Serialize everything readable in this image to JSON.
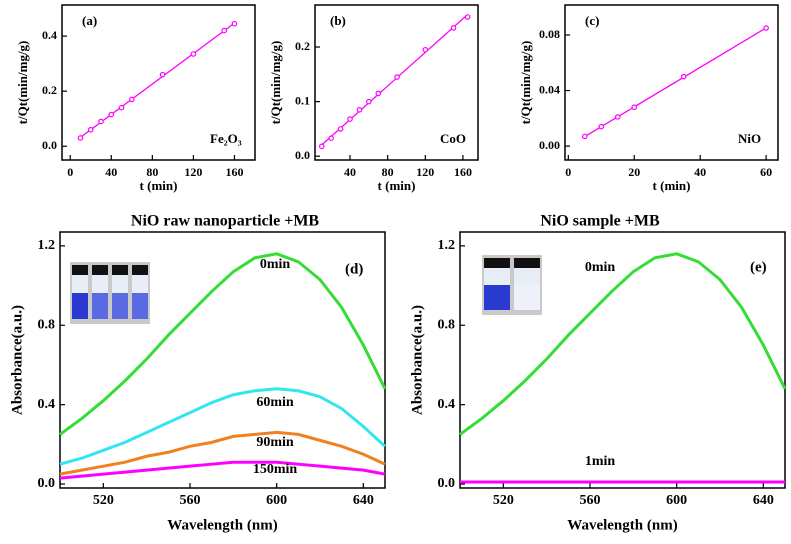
{
  "chart_data": [
    {
      "type": "scatter",
      "annotations": [
        "(a)",
        "Fe₂O₃"
      ],
      "x_label": "t (min)",
      "y_label": "t/Qt(min/mg/g)",
      "color": "#ff00ff",
      "x": [
        10,
        20,
        30,
        40,
        50,
        60,
        90,
        120,
        150,
        160
      ],
      "values": [
        0.03,
        0.06,
        0.09,
        0.115,
        0.14,
        0.17,
        0.26,
        0.335,
        0.42,
        0.445
      ],
      "xlim": [
        -8,
        180
      ],
      "ylim": [
        -0.05,
        0.513
      ],
      "xticks": [
        0,
        40,
        80,
        120,
        160
      ],
      "yticks": [
        {
          "value": 0,
          "label": "0.0"
        },
        0.2,
        0.4
      ]
    },
    {
      "type": "scatter",
      "annotations": [
        "(b)",
        "CoO"
      ],
      "x_label": "t (min)",
      "y_label": "t/Qt(min/mg/g)",
      "color": "#ff00ff",
      "x": [
        10,
        20,
        30,
        40,
        50,
        60,
        70,
        90,
        120,
        150,
        165
      ],
      "values": [
        0.018,
        0.033,
        0.05,
        0.068,
        0.085,
        0.1,
        0.115,
        0.145,
        0.195,
        0.235,
        0.255
      ],
      "xlim": [
        2.8,
        176
      ],
      "ylim": [
        -0.007,
        0.277
      ],
      "xticks": [
        40,
        80,
        120,
        160
      ],
      "yticks": [
        {
          "value": 0,
          "label": "0.0"
        },
        0.1,
        0.2
      ]
    },
    {
      "type": "scatter",
      "annotations": [
        "(c)",
        "NiO"
      ],
      "x_label": "t (min)",
      "y_label": "t/Qt(min/mg/g)",
      "color": "#ff00ff",
      "x": [
        5,
        10,
        15,
        20,
        35,
        60
      ],
      "values": [
        0.007,
        0.014,
        0.021,
        0.028,
        0.05,
        0.085
      ],
      "xlim": [
        -1,
        63.6
      ],
      "ylim": [
        -0.01,
        0.1016
      ],
      "xticks": [
        0,
        20,
        40,
        60
      ],
      "yticks": [
        {
          "value": 0,
          "label": "0.00"
        },
        0.04,
        0.08
      ]
    },
    {
      "type": "line",
      "title": "NiO raw nanoparticle +MB",
      "annotations": [
        "(d)"
      ],
      "x_label": "Wavelength (nm)",
      "y_label": "Absorbance(a.u.)",
      "x": [
        500,
        510,
        520,
        530,
        540,
        550,
        560,
        570,
        580,
        590,
        600,
        610,
        620,
        630,
        640,
        650
      ],
      "series": [
        {
          "name": "0min",
          "color": "#33dd33",
          "values": [
            0.25,
            0.33,
            0.42,
            0.52,
            0.63,
            0.75,
            0.86,
            0.97,
            1.07,
            1.14,
            1.16,
            1.12,
            1.03,
            0.89,
            0.7,
            0.48
          ]
        },
        {
          "name": "60min",
          "color": "#33e5f0",
          "values": [
            0.1,
            0.13,
            0.17,
            0.21,
            0.26,
            0.31,
            0.36,
            0.41,
            0.45,
            0.47,
            0.48,
            0.47,
            0.44,
            0.38,
            0.29,
            0.19
          ]
        },
        {
          "name": "90min",
          "color": "#f08020",
          "values": [
            0.05,
            0.07,
            0.09,
            0.11,
            0.14,
            0.16,
            0.19,
            0.21,
            0.24,
            0.25,
            0.26,
            0.25,
            0.22,
            0.19,
            0.15,
            0.1
          ]
        },
        {
          "name": "150min",
          "color": "#ff00ff",
          "values": [
            0.03,
            0.04,
            0.05,
            0.06,
            0.07,
            0.08,
            0.09,
            0.1,
            0.11,
            0.11,
            0.11,
            0.1,
            0.09,
            0.08,
            0.07,
            0.05
          ]
        }
      ],
      "xlim": [
        500,
        650
      ],
      "ylim": [
        -0.02,
        1.27
      ],
      "xticks": [
        520,
        560,
        600,
        640
      ],
      "yticks": [
        {
          "value": 0,
          "label": "0.0"
        },
        0.4,
        0.8,
        1.2
      ]
    },
    {
      "type": "line",
      "title": "NiO sample +MB",
      "annotations": [
        "(e)"
      ],
      "x_label": "Wavelength (nm)",
      "y_label": "Absorbance(a.u.)",
      "x": [
        500,
        510,
        520,
        530,
        540,
        550,
        560,
        570,
        580,
        590,
        600,
        610,
        620,
        630,
        640,
        650
      ],
      "series": [
        {
          "name": "0min",
          "color": "#33dd33",
          "values": [
            0.25,
            0.33,
            0.42,
            0.52,
            0.63,
            0.75,
            0.86,
            0.97,
            1.07,
            1.14,
            1.16,
            1.12,
            1.03,
            0.89,
            0.7,
            0.48
          ]
        },
        {
          "name": "1min",
          "color": "#ff00ff",
          "values": [
            0.01,
            0.01,
            0.01,
            0.01,
            0.01,
            0.01,
            0.01,
            0.01,
            0.01,
            0.01,
            0.01,
            0.01,
            0.01,
            0.01,
            0.01,
            0.01
          ]
        }
      ],
      "xlim": [
        500,
        650
      ],
      "ylim": [
        -0.02,
        1.27
      ],
      "xticks": [
        520,
        560,
        600,
        640
      ],
      "yticks": [
        {
          "value": 0,
          "label": "0.0"
        },
        0.4,
        0.8,
        1.2
      ]
    }
  ]
}
